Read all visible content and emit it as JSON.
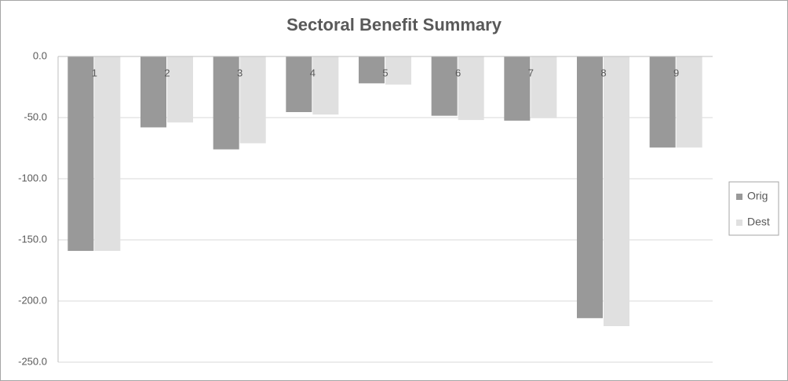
{
  "chart_data": {
    "type": "bar",
    "title": "Sectoral Benefit Summary",
    "categories": [
      "1",
      "2",
      "3",
      "4",
      "5",
      "6",
      "7",
      "8",
      "9"
    ],
    "series": [
      {
        "name": "Orig",
        "color": "#999999",
        "values": [
          -159,
          -58,
          -76,
          -45.5,
          -22,
          -48.5,
          -52.5,
          -214,
          -74.5
        ]
      },
      {
        "name": "Dest",
        "color": "#e0e0e0",
        "values": [
          -159,
          -54,
          -71,
          -47.5,
          -23,
          -52,
          -50.5,
          -220.5,
          -74.5
        ]
      }
    ],
    "ylim": [
      -250,
      0
    ],
    "yticks": [
      {
        "value": 0,
        "label": "0.0"
      },
      {
        "value": -50,
        "label": "-50.0"
      },
      {
        "value": -100,
        "label": "-100.0"
      },
      {
        "value": -150,
        "label": "-150.0"
      },
      {
        "value": -200,
        "label": "-200.0"
      },
      {
        "value": -250,
        "label": "-250.0"
      }
    ],
    "grid": true,
    "legend": "right"
  }
}
